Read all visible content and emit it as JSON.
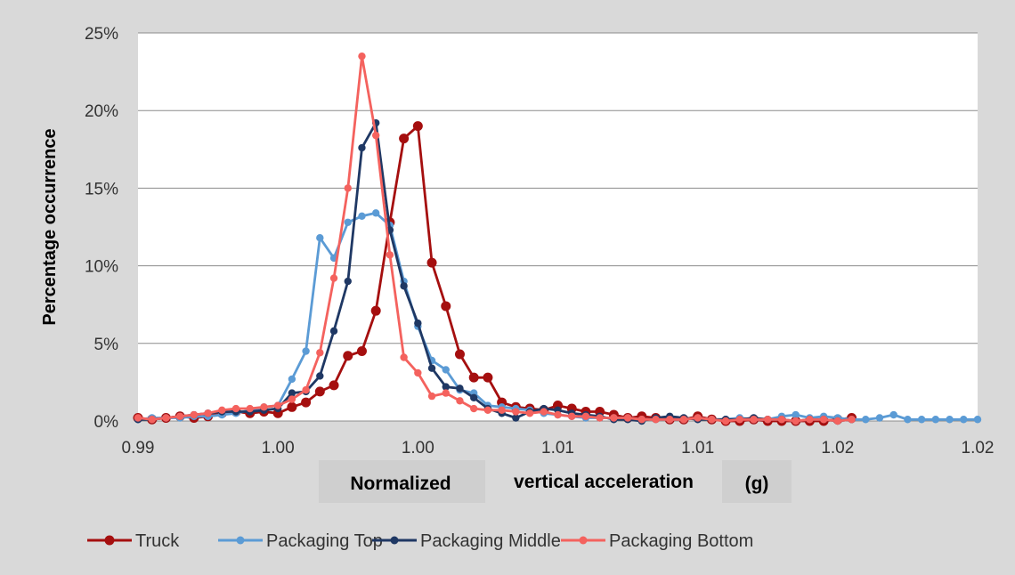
{
  "chart_data": {
    "type": "line",
    "title": "",
    "ylabel": "Percentage occurrence",
    "xlabel_parts": [
      "Normalized",
      "vertical acceleration",
      "(g)"
    ],
    "x_tick_labels": [
      "0.99",
      "1.00",
      "1.00",
      "1.01",
      "1.01",
      "1.02",
      "1.02"
    ],
    "y_tick_labels": [
      "0%",
      "5%",
      "10%",
      "15%",
      "20%",
      "25%"
    ],
    "xlim": [
      0,
      6
    ],
    "ylim": [
      0,
      25
    ],
    "grid": "horizontal",
    "legend_position": "bottom",
    "series": [
      {
        "name": "Truck",
        "color": "#a50f0f",
        "x": [
          0.0,
          0.1,
          0.2,
          0.3,
          0.4,
          0.5,
          0.6,
          0.7,
          0.8,
          0.9,
          1.0,
          1.1,
          1.2,
          1.3,
          1.4,
          1.5,
          1.6,
          1.7,
          1.8,
          1.9,
          2.0,
          2.1,
          2.2,
          2.3,
          2.4,
          2.5,
          2.6,
          2.7,
          2.8,
          2.9,
          3.0,
          3.1,
          3.2,
          3.3,
          3.4,
          3.5,
          3.6,
          3.7,
          3.8,
          3.9,
          4.0,
          4.1,
          4.2,
          4.3,
          4.4,
          4.5,
          4.6,
          4.7,
          4.8,
          4.9,
          5.0,
          5.1
        ],
        "y": [
          0.2,
          0.1,
          0.2,
          0.3,
          0.2,
          0.3,
          0.5,
          0.6,
          0.5,
          0.6,
          0.5,
          0.9,
          1.2,
          1.9,
          2.3,
          4.2,
          4.5,
          7.1,
          12.8,
          18.2,
          19.0,
          10.2,
          7.4,
          4.3,
          2.8,
          2.8,
          1.2,
          0.9,
          0.8,
          0.7,
          1.0,
          0.8,
          0.6,
          0.6,
          0.4,
          0.2,
          0.3,
          0.2,
          0.1,
          0.1,
          0.3,
          0.1,
          0.0,
          0.0,
          0.1,
          0.0,
          0.0,
          0.0,
          0.0,
          0.0,
          0.1,
          0.2
        ]
      },
      {
        "name": "Packaging Top",
        "color": "#5b9bd5",
        "x": [
          0.0,
          0.1,
          0.2,
          0.3,
          0.4,
          0.5,
          0.6,
          0.7,
          0.8,
          0.9,
          1.0,
          1.1,
          1.2,
          1.3,
          1.4,
          1.5,
          1.6,
          1.7,
          1.8,
          1.9,
          2.0,
          2.1,
          2.2,
          2.3,
          2.4,
          2.5,
          2.6,
          2.7,
          2.8,
          2.9,
          3.0,
          3.1,
          3.2,
          3.3,
          3.4,
          3.5,
          3.6,
          3.7,
          3.8,
          3.9,
          4.0,
          4.1,
          4.2,
          4.3,
          4.4,
          4.5,
          4.6,
          4.7,
          4.8,
          4.9,
          5.0,
          5.1,
          5.2,
          5.3,
          5.4,
          5.5,
          5.6,
          5.7,
          5.8,
          5.9,
          6.0
        ],
        "y": [
          0.1,
          0.2,
          0.2,
          0.2,
          0.3,
          0.3,
          0.4,
          0.5,
          0.7,
          0.9,
          1.0,
          2.7,
          4.5,
          11.8,
          10.5,
          12.8,
          13.2,
          13.4,
          12.6,
          9.0,
          6.1,
          3.9,
          3.3,
          2.0,
          1.8,
          1.0,
          0.9,
          0.8,
          0.7,
          0.5,
          0.4,
          0.3,
          0.2,
          0.2,
          0.2,
          0.2,
          0.1,
          0.1,
          0.1,
          0.1,
          0.2,
          0.1,
          0.1,
          0.2,
          0.1,
          0.1,
          0.3,
          0.4,
          0.2,
          0.3,
          0.2,
          0.1,
          0.1,
          0.2,
          0.4,
          0.1,
          0.1,
          0.1,
          0.1,
          0.1,
          0.1
        ]
      },
      {
        "name": "Packaging Middle",
        "color": "#1f3864",
        "x": [
          0.0,
          0.1,
          0.2,
          0.3,
          0.4,
          0.5,
          0.6,
          0.7,
          0.8,
          0.9,
          1.0,
          1.1,
          1.2,
          1.3,
          1.4,
          1.5,
          1.6,
          1.7,
          1.8,
          1.9,
          2.0,
          2.1,
          2.2,
          2.3,
          2.4,
          2.5,
          2.6,
          2.7,
          2.8,
          2.9,
          3.0,
          3.1,
          3.2,
          3.3,
          3.4,
          3.5,
          3.6,
          3.7,
          3.8,
          3.9,
          4.0,
          4.1,
          4.2,
          4.3,
          4.4,
          4.5,
          4.6,
          4.7,
          4.8,
          4.9,
          5.0,
          5.1
        ],
        "y": [
          0.1,
          0.1,
          0.2,
          0.3,
          0.4,
          0.5,
          0.6,
          0.6,
          0.6,
          0.7,
          0.8,
          1.8,
          1.9,
          2.9,
          5.8,
          9.0,
          17.6,
          19.2,
          12.3,
          8.7,
          6.3,
          3.4,
          2.2,
          2.1,
          1.5,
          0.8,
          0.5,
          0.2,
          0.6,
          0.8,
          0.7,
          0.5,
          0.4,
          0.3,
          0.1,
          0.1,
          0.0,
          0.2,
          0.3,
          0.2,
          0.1,
          0.1,
          0.1,
          0.1,
          0.2,
          0.1,
          0.1,
          0.0,
          0.1,
          0.1,
          0.0,
          0.1
        ]
      },
      {
        "name": "Packaging Bottom",
        "color": "#f4625e",
        "x": [
          0.0,
          0.1,
          0.2,
          0.3,
          0.4,
          0.5,
          0.6,
          0.7,
          0.8,
          0.9,
          1.0,
          1.1,
          1.2,
          1.3,
          1.4,
          1.5,
          1.6,
          1.7,
          1.8,
          1.9,
          2.0,
          2.1,
          2.2,
          2.3,
          2.4,
          2.5,
          2.6,
          2.7,
          2.8,
          2.9,
          3.0,
          3.1,
          3.2,
          3.3,
          3.4,
          3.5,
          3.6,
          3.7,
          3.8,
          3.9,
          4.0,
          4.1,
          4.2,
          4.3,
          4.4,
          4.5,
          4.6,
          4.7,
          4.8,
          4.9,
          5.0,
          5.1
        ],
        "y": [
          0.2,
          0.1,
          0.2,
          0.3,
          0.4,
          0.5,
          0.7,
          0.8,
          0.8,
          0.9,
          1.0,
          1.4,
          2.0,
          4.4,
          9.2,
          15.0,
          23.5,
          18.4,
          10.7,
          4.1,
          3.1,
          1.6,
          1.8,
          1.3,
          0.8,
          0.7,
          0.7,
          0.6,
          0.5,
          0.6,
          0.4,
          0.3,
          0.3,
          0.2,
          0.2,
          0.2,
          0.1,
          0.1,
          0.1,
          0.1,
          0.2,
          0.1,
          0.0,
          0.1,
          0.1,
          0.1,
          0.1,
          0.0,
          0.1,
          0.1,
          0.0,
          0.1
        ]
      }
    ]
  }
}
